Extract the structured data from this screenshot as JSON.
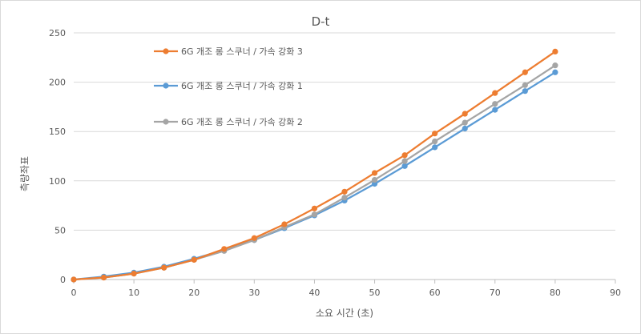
{
  "chart_data": {
    "type": "line",
    "title": "D-t",
    "xlabel": "소요 시간 (초)",
    "ylabel": "측량좌표",
    "xlim": [
      0,
      90
    ],
    "ylim": [
      0,
      250
    ],
    "x_ticks": [
      "0",
      "10",
      "20",
      "30",
      "40",
      "50",
      "60",
      "70",
      "80",
      "90"
    ],
    "y_ticks": [
      "0",
      "50",
      "100",
      "150",
      "200",
      "250"
    ],
    "grid": "horizontal",
    "legend_position": "top-left",
    "x": [
      0,
      5,
      10,
      15,
      20,
      25,
      30,
      35,
      40,
      45,
      50,
      55,
      60,
      65,
      70,
      75,
      80
    ],
    "series": [
      {
        "name": "6G 개조 롱 스쿠너 / 가속 강화 3",
        "color": "#ED7D31",
        "values": [
          0,
          2,
          6,
          12,
          20,
          31,
          42,
          56,
          72,
          89,
          108,
          126,
          148,
          168,
          189,
          210,
          231
        ]
      },
      {
        "name": "6G 개조 롱 스쿠너 / 가속 강화 1",
        "color": "#5B9BD5",
        "values": [
          0,
          3,
          7,
          13,
          21,
          30,
          40,
          52,
          65,
          80,
          97,
          115,
          134,
          153,
          172,
          191,
          210
        ]
      },
      {
        "name": "6G 개조 롱 스쿠너 / 가속 강화 2",
        "color": "#A5A5A5",
        "values": [
          0,
          2,
          6,
          12,
          20,
          29,
          40,
          53,
          66,
          83,
          101,
          120,
          140,
          159,
          178,
          197,
          217
        ]
      }
    ]
  }
}
